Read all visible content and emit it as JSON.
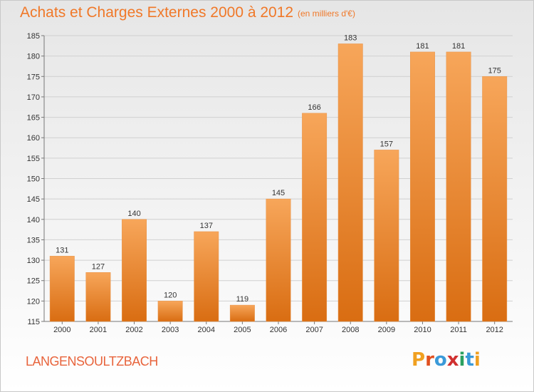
{
  "title": "Achats et Charges Externes 2000 à 2012",
  "subtitle": "(en milliers d'€)",
  "town": "LANGENSOULTZBACH",
  "logo": {
    "text": "Proxiti",
    "letter_colors": [
      "#f0a020",
      "#e05020",
      "#3a9ad9",
      "#d03030",
      "#2aa060",
      "#3a9ad9",
      "#f0a020"
    ]
  },
  "colors": {
    "bar_top": "#f7a65a",
    "bar_bottom": "#d96d12",
    "title": "#f07828"
  },
  "chart_data": {
    "type": "bar",
    "categories": [
      "2000",
      "2001",
      "2002",
      "2003",
      "2004",
      "2005",
      "2006",
      "2007",
      "2008",
      "2009",
      "2010",
      "2011",
      "2012"
    ],
    "values": [
      131,
      127,
      140,
      120,
      137,
      119,
      145,
      166,
      183,
      157,
      181,
      181,
      175
    ],
    "ylim": [
      115,
      185
    ],
    "yticks": [
      115,
      120,
      125,
      130,
      135,
      140,
      145,
      150,
      155,
      160,
      165,
      170,
      175,
      180,
      185
    ],
    "title": "Achats et Charges Externes 2000 à 2012",
    "xlabel": "",
    "ylabel": "",
    "grid": "horizontal",
    "data_labels": true
  }
}
